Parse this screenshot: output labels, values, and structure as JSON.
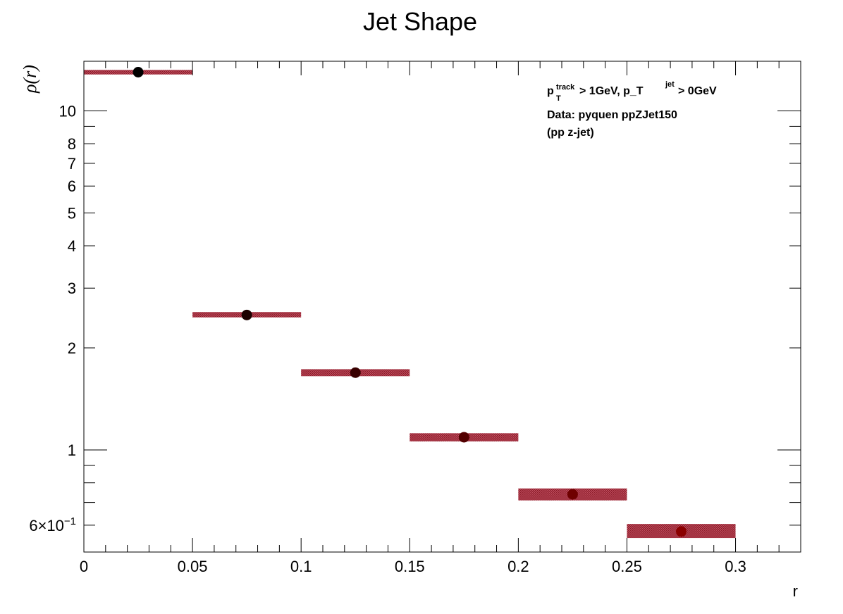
{
  "chart_data": {
    "type": "scatter",
    "title": "Jet Shape",
    "xlabel": "r",
    "ylabel_symbol": "ρ",
    "ylabel_arg": "(r)",
    "xlim": [
      0,
      0.33
    ],
    "ylim": [
      0.5,
      14
    ],
    "yscale": "log",
    "grid": false,
    "x_ticks": [
      "0",
      "0.05",
      "0.1",
      "0.15",
      "0.2",
      "0.25",
      "0.3"
    ],
    "y_tick_labels": [
      {
        "value": 10,
        "label": "10"
      },
      {
        "value": 8,
        "label": "8"
      },
      {
        "value": 7,
        "label": "7"
      },
      {
        "value": 6,
        "label": "6"
      },
      {
        "value": 5,
        "label": "5"
      },
      {
        "value": 4,
        "label": "4"
      },
      {
        "value": 3,
        "label": "3"
      },
      {
        "value": 2,
        "label": "2"
      },
      {
        "value": 1,
        "label": "1"
      },
      {
        "value": 0.6,
        "label": "6×10",
        "exp": "−1"
      }
    ],
    "points": [
      {
        "x": 0.025,
        "y": 13.0,
        "xlow": 0.0,
        "xhigh": 0.05,
        "band_low": 12.8,
        "band_high": 13.2
      },
      {
        "x": 0.075,
        "y": 2.5,
        "xlow": 0.05,
        "xhigh": 0.1,
        "band_low": 2.46,
        "band_high": 2.55
      },
      {
        "x": 0.125,
        "y": 1.69,
        "xlow": 0.1,
        "xhigh": 0.15,
        "band_low": 1.65,
        "band_high": 1.73
      },
      {
        "x": 0.175,
        "y": 1.09,
        "xlow": 0.15,
        "xhigh": 0.2,
        "band_low": 1.06,
        "band_high": 1.12
      },
      {
        "x": 0.225,
        "y": 0.74,
        "xlow": 0.2,
        "xhigh": 0.25,
        "band_low": 0.71,
        "band_high": 0.77
      },
      {
        "x": 0.275,
        "y": 0.575,
        "xlow": 0.25,
        "xhigh": 0.3,
        "band_low": 0.55,
        "band_high": 0.605
      }
    ],
    "annotation": {
      "line1_p": "p",
      "line1_sup": "track",
      "line1_sub": "T",
      "line1_rest": " > 1GeV, p_T",
      "line1_sup2": "jet",
      "line1_end": " > 0GeV",
      "line2": "Data: pyquen ppZJet150",
      "line3": "(pp z-jet)"
    },
    "colors": {
      "band": "#b03040",
      "marker_start": "#000000",
      "marker_end": "#8b0000"
    }
  }
}
